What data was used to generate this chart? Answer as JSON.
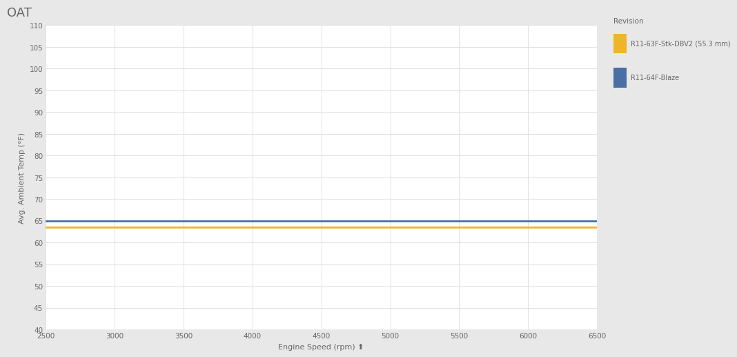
{
  "title": "OAT",
  "xlabel": "Engine Speed (rpm) ⬆",
  "ylabel": "Avg. Ambient Temp (°F)",
  "xlim": [
    2500,
    6500
  ],
  "ylim": [
    40,
    110
  ],
  "xticks": [
    2500,
    3000,
    3500,
    4000,
    4500,
    5000,
    5500,
    6000,
    6500
  ],
  "yticks": [
    40,
    45,
    50,
    55,
    60,
    65,
    70,
    75,
    80,
    85,
    90,
    95,
    100,
    105,
    110
  ],
  "line1_color": "#f0b429",
  "line1_label": "R11-63F-Stk-DBV2 (55.3 mm)",
  "line1_y": 63.5,
  "line2_color": "#4a6fa5",
  "line2_label": "R11-64F-Blaze",
  "line2_y": 65.0,
  "line_width": 2.0,
  "legend_title": "Revision",
  "bg_color": "#ffffff",
  "panel_color": "#e8e8e8",
  "grid_color": "#e0e0e0",
  "title_fontsize": 13,
  "axis_label_fontsize": 8,
  "tick_fontsize": 7.5,
  "legend_fontsize": 7.5,
  "text_color": "#666666"
}
